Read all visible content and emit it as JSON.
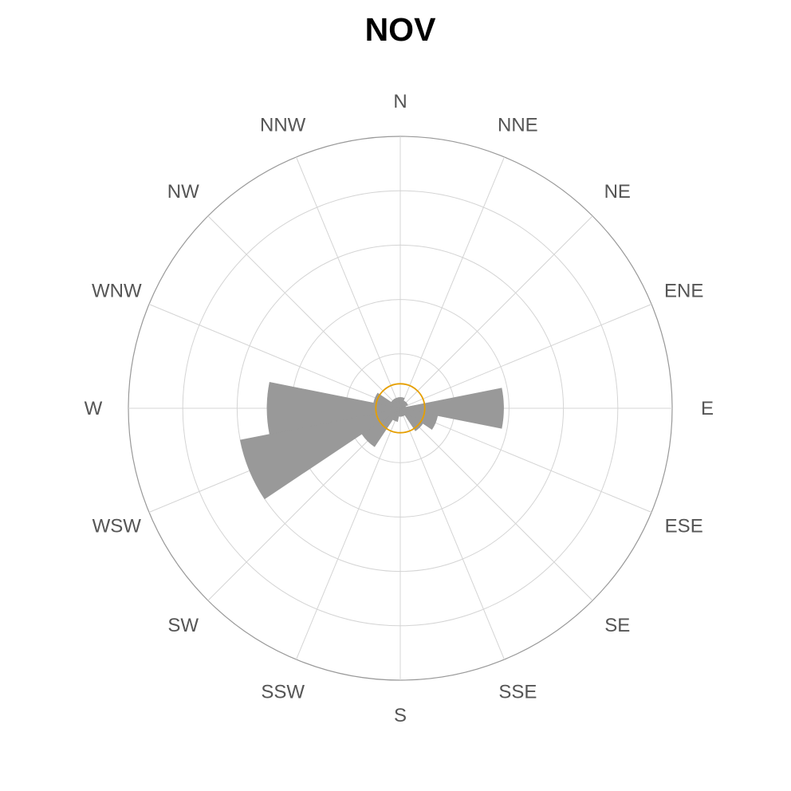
{
  "chart_data": {
    "type": "windrose",
    "title": "NOV",
    "directions": [
      "N",
      "NNE",
      "NE",
      "ENE",
      "E",
      "ESE",
      "SE",
      "SSE",
      "S",
      "SSW",
      "SW",
      "WSW",
      "W",
      "WNW",
      "NW",
      "NNW"
    ],
    "sectors": [
      {
        "start_deg": 0,
        "end_deg": 22.5,
        "value": 0.04
      },
      {
        "start_deg": 22.5,
        "end_deg": 45,
        "value": 0.03
      },
      {
        "start_deg": 45,
        "end_deg": 67.5,
        "value": 0.03
      },
      {
        "start_deg": 67.5,
        "end_deg": 90,
        "value": 0.02
      },
      {
        "start_deg": 78.75,
        "end_deg": 101.25,
        "value": 0.38
      },
      {
        "start_deg": 101.25,
        "end_deg": 123.75,
        "value": 0.14
      },
      {
        "start_deg": 123.75,
        "end_deg": 146.25,
        "value": 0.1
      },
      {
        "start_deg": 146.25,
        "end_deg": 168.75,
        "value": 0.03
      },
      {
        "start_deg": 168.75,
        "end_deg": 191.25,
        "value": 0.03
      },
      {
        "start_deg": 191.25,
        "end_deg": 213.75,
        "value": 0.05
      },
      {
        "start_deg": 213.75,
        "end_deg": 236.25,
        "value": 0.17
      },
      {
        "start_deg": 236.25,
        "end_deg": 258.75,
        "value": 0.6
      },
      {
        "start_deg": 258.75,
        "end_deg": 281.25,
        "value": 0.49
      },
      {
        "start_deg": 281.25,
        "end_deg": 303.75,
        "value": 0.1
      },
      {
        "start_deg": 303.75,
        "end_deg": 326.25,
        "value": 0.04
      },
      {
        "start_deg": 326.25,
        "end_deg": 348.75,
        "value": 0.04
      },
      {
        "start_deg": 348.75,
        "end_deg": 360,
        "value": 0.04
      }
    ],
    "radial_max": 1.0,
    "grid_rings": [
      0.2,
      0.4,
      0.6,
      0.8,
      1.0
    ],
    "calm_ring": 0.09,
    "grid": true,
    "colors": {
      "bars": "#999999",
      "calm_ring": "#E69F00",
      "grid": "#d4d4d4",
      "outer_ring": "#999999",
      "labels": "#555555",
      "title": "#000000"
    }
  }
}
